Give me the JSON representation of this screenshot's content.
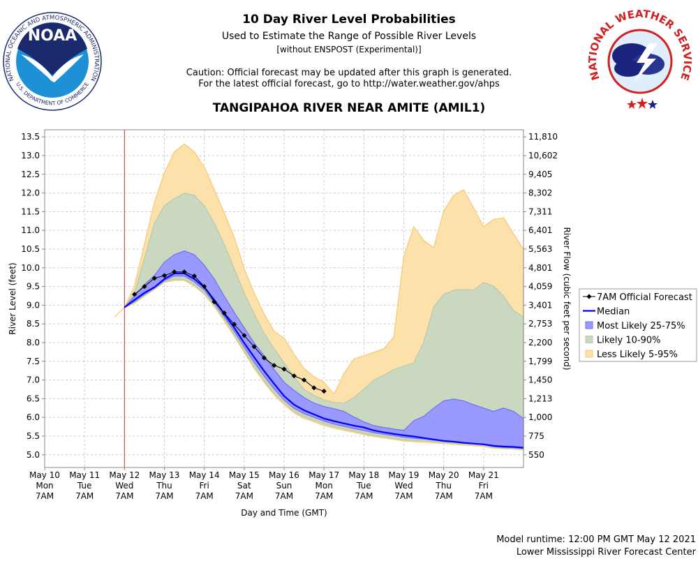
{
  "header": {
    "title": "10 Day River Level Probabilities",
    "subtitle": "Used to Estimate the Range of Possible River Levels",
    "note": "[without ENSPOST (Experimental)]",
    "caution": [
      "Caution: Official forecast may be updated after this graph is generated.",
      "For the latest official forecast, go to http://water.weather.gov/ahps"
    ]
  },
  "logos": {
    "noaa": {
      "name": "NOAA",
      "ring_top": "NATIONAL OCEANIC AND ATMOSPHERIC ADMINISTRATION",
      "ring_bottom": "U.S. DEPARTMENT OF COMMERCE"
    },
    "nws": {
      "ring": "NATIONAL WEATHER SERVICE"
    }
  },
  "chart_data": {
    "type": "probability_bands",
    "title": "TANGIPAHOA RIVER NEAR AMITE (AMIL1)",
    "x_label": "Day and Time (GMT)",
    "y_label": "River Level (feet)",
    "y2_label": "River Flow (cubic feet per second)",
    "grid": true,
    "legend": "right",
    "xlim": [
      "2021-05-10T07:00",
      "2021-05-22T07:00"
    ],
    "xticks": [
      {
        "value": "2021-05-10T07:00",
        "label": [
          "May 10",
          "Mon",
          "7AM"
        ]
      },
      {
        "value": "2021-05-11T07:00",
        "label": [
          "May 11",
          "Tue",
          "7AM"
        ]
      },
      {
        "value": "2021-05-12T07:00",
        "label": [
          "May 12",
          "Wed",
          "7AM"
        ]
      },
      {
        "value": "2021-05-13T07:00",
        "label": [
          "May 13",
          "Thu",
          "7AM"
        ]
      },
      {
        "value": "2021-05-14T07:00",
        "label": [
          "May 14",
          "Fri",
          "7AM"
        ]
      },
      {
        "value": "2021-05-15T07:00",
        "label": [
          "May 15",
          "Sat",
          "7AM"
        ]
      },
      {
        "value": "2021-05-16T07:00",
        "label": [
          "May 16",
          "Sun",
          "7AM"
        ]
      },
      {
        "value": "2021-05-17T07:00",
        "label": [
          "May 17",
          "Mon",
          "7AM"
        ]
      },
      {
        "value": "2021-05-18T07:00",
        "label": [
          "May 18",
          "Tue",
          "7AM"
        ]
      },
      {
        "value": "2021-05-19T07:00",
        "label": [
          "May 19",
          "Wed",
          "7AM"
        ]
      },
      {
        "value": "2021-05-20T07:00",
        "label": [
          "May 20",
          "Thu",
          "7AM"
        ]
      },
      {
        "value": "2021-05-21T07:00",
        "label": [
          "May 21",
          "Fri",
          "7AM"
        ]
      }
    ],
    "ylim": [
      4.66,
      13.69
    ],
    "yticks": [
      {
        "value": 5,
        "label": "5.0"
      },
      5.5,
      {
        "value": 6,
        "label": "6.0"
      },
      6.5,
      {
        "value": 7,
        "label": "7.0"
      },
      7.5,
      {
        "value": 8,
        "label": "8.0"
      },
      8.5,
      {
        "value": 9,
        "label": "9.0"
      },
      9.5,
      {
        "value": 10,
        "label": "10.0"
      },
      10.5,
      {
        "value": 11,
        "label": "11.0"
      },
      11.5,
      {
        "value": 12,
        "label": "12.0"
      },
      12.5,
      {
        "value": 13,
        "label": "13.0"
      },
      13.5
    ],
    "y2ticks": [
      550,
      775,
      {
        "value": 1000,
        "label": "1,000"
      },
      {
        "value": 1213,
        "label": "1,213"
      },
      {
        "value": 1450,
        "label": "1,450"
      },
      {
        "value": 1799,
        "label": "1,799"
      },
      {
        "value": 2200,
        "label": "2,200"
      },
      {
        "value": 2753,
        "label": "2,753"
      },
      {
        "value": 3401,
        "label": "3,401"
      },
      {
        "value": 4059,
        "label": "4,059"
      },
      {
        "value": 4801,
        "label": "4,801"
      },
      {
        "value": 5563,
        "label": "5,563"
      },
      {
        "value": 6401,
        "label": "6,401"
      },
      {
        "value": 7311,
        "label": "7,311"
      },
      {
        "value": 8302,
        "label": "8,302"
      },
      {
        "value": 9405,
        "label": "9,405"
      },
      {
        "value": 10602,
        "label": "10,602"
      },
      {
        "value": 11810,
        "label": "11,810"
      }
    ],
    "now_line": {
      "x": "2021-05-12T07:00",
      "color": "#cc3333"
    },
    "x": [
      "2021-05-12T01:00",
      "2021-05-12T07:00",
      "2021-05-12T13:00",
      "2021-05-12T19:00",
      "2021-05-13T01:00",
      "2021-05-13T07:00",
      "2021-05-13T13:00",
      "2021-05-13T19:00",
      "2021-05-14T01:00",
      "2021-05-14T07:00",
      "2021-05-14T13:00",
      "2021-05-14T19:00",
      "2021-05-15T01:00",
      "2021-05-15T07:00",
      "2021-05-15T13:00",
      "2021-05-15T19:00",
      "2021-05-16T01:00",
      "2021-05-16T07:00",
      "2021-05-16T13:00",
      "2021-05-16T19:00",
      "2021-05-17T01:00",
      "2021-05-17T07:00",
      "2021-05-17T13:00",
      "2021-05-17T19:00",
      "2021-05-18T01:00",
      "2021-05-18T07:00",
      "2021-05-18T13:00",
      "2021-05-18T19:00",
      "2021-05-19T01:00",
      "2021-05-19T07:00",
      "2021-05-19T13:00",
      "2021-05-19T19:00",
      "2021-05-20T01:00",
      "2021-05-20T07:00",
      "2021-05-20T13:00",
      "2021-05-20T19:00",
      "2021-05-21T01:00",
      "2021-05-21T07:00",
      "2021-05-21T13:00",
      "2021-05-21T19:00",
      "2021-05-22T01:00",
      "2021-05-22T07:00"
    ],
    "series": [
      {
        "name": "7AM Official Forecast",
        "color": "#000000",
        "marker": "diamond",
        "values": [
          null,
          null,
          9.29,
          9.5,
          9.72,
          9.79,
          9.89,
          9.89,
          9.78,
          9.5,
          9.09,
          8.79,
          8.49,
          8.19,
          7.89,
          7.59,
          7.39,
          7.29,
          7.11,
          7.0,
          6.79,
          6.7,
          null,
          null,
          null,
          null,
          null,
          null,
          null,
          null,
          null,
          null,
          null,
          null,
          null,
          null,
          null,
          null,
          null,
          null,
          null,
          null
        ]
      },
      {
        "name": "Median",
        "color": "#0000ff",
        "values": [
          null,
          8.94,
          9.14,
          9.33,
          9.48,
          9.7,
          9.85,
          9.85,
          9.7,
          9.48,
          9.14,
          8.77,
          8.4,
          7.99,
          7.61,
          7.24,
          6.9,
          6.57,
          6.34,
          6.19,
          6.08,
          5.97,
          5.9,
          5.84,
          5.78,
          5.73,
          5.65,
          5.6,
          5.56,
          5.52,
          5.49,
          5.45,
          5.41,
          5.37,
          5.35,
          5.32,
          5.3,
          5.28,
          5.24,
          5.22,
          5.21,
          5.19
        ]
      },
      {
        "name": "Most Likely 25-75%",
        "color": "#9999ff",
        "edge_color": "#7070ee",
        "lower": [
          null,
          8.94,
          9.1,
          9.29,
          9.46,
          9.66,
          9.78,
          9.78,
          9.62,
          9.4,
          9.06,
          8.69,
          8.3,
          7.88,
          7.47,
          7.1,
          6.76,
          6.46,
          6.24,
          6.1,
          6.0,
          5.9,
          5.82,
          5.76,
          5.7,
          5.65,
          5.59,
          5.55,
          5.51,
          5.47,
          5.44,
          5.42,
          5.39,
          5.36,
          5.34,
          5.31,
          5.29,
          5.27,
          5.22,
          5.2,
          5.19,
          5.17
        ],
        "upper": [
          null,
          8.94,
          9.24,
          9.55,
          9.79,
          10.15,
          10.35,
          10.45,
          10.35,
          10.07,
          9.7,
          9.24,
          8.81,
          8.4,
          7.99,
          7.65,
          7.28,
          6.94,
          6.72,
          6.53,
          6.38,
          6.29,
          6.23,
          6.16,
          6.01,
          5.88,
          5.78,
          5.73,
          5.69,
          5.65,
          5.91,
          6.03,
          6.25,
          6.44,
          6.49,
          6.44,
          6.34,
          6.25,
          6.16,
          6.25,
          6.16,
          5.97
        ]
      },
      {
        "name": "Likely 10-90%",
        "color": "#c9d8bf",
        "edge_color": "#b9c9ae",
        "lower": [
          null,
          8.94,
          9.07,
          9.26,
          9.44,
          9.63,
          9.69,
          9.69,
          9.54,
          9.32,
          8.99,
          8.62,
          8.21,
          7.78,
          7.35,
          6.98,
          6.64,
          6.38,
          6.16,
          6.01,
          5.92,
          5.82,
          5.75,
          5.69,
          5.63,
          5.57,
          5.52,
          5.48,
          5.44,
          5.4,
          5.38,
          5.37,
          5.35,
          5.33,
          5.31,
          5.29,
          5.27,
          5.25,
          5.2,
          5.18,
          5.17,
          5.15
        ],
        "upper": [
          null,
          8.94,
          9.33,
          10.26,
          11.19,
          11.66,
          11.85,
          12.0,
          11.94,
          11.66,
          11.19,
          10.63,
          9.98,
          9.33,
          8.77,
          8.25,
          7.84,
          7.46,
          7.09,
          6.75,
          6.59,
          6.47,
          6.4,
          6.38,
          6.53,
          6.75,
          7.0,
          7.13,
          7.28,
          7.37,
          7.46,
          8.02,
          8.96,
          9.29,
          9.4,
          9.42,
          9.4,
          9.61,
          9.51,
          9.24,
          8.86,
          8.68
        ]
      },
      {
        "name": "Less Likely 5-95%",
        "color": "#fde1aa",
        "edge_color": "#f8c870",
        "lower": [
          8.68,
          8.94,
          9.05,
          9.24,
          9.42,
          9.61,
          9.66,
          9.66,
          9.51,
          9.29,
          8.96,
          8.58,
          8.17,
          7.74,
          7.31,
          6.94,
          6.6,
          6.34,
          6.12,
          5.97,
          5.88,
          5.78,
          5.71,
          5.65,
          5.6,
          5.54,
          5.49,
          5.45,
          5.41,
          5.37,
          5.35,
          5.34,
          5.32,
          5.3,
          5.28,
          5.26,
          5.24,
          5.22,
          5.18,
          5.16,
          5.15,
          5.13
        ],
        "upper": [
          8.68,
          8.94,
          9.51,
          10.63,
          11.75,
          12.54,
          13.1,
          13.31,
          13.1,
          12.69,
          12.09,
          11.47,
          10.82,
          9.98,
          9.33,
          8.77,
          8.3,
          8.12,
          7.69,
          7.31,
          7.09,
          6.94,
          6.62,
          7.18,
          7.56,
          7.65,
          7.74,
          7.84,
          8.15,
          10.3,
          11.1,
          10.73,
          10.54,
          11.51,
          11.94,
          12.09,
          11.6,
          11.1,
          11.29,
          11.34,
          10.91,
          10.49
        ]
      }
    ]
  },
  "footer": [
    "Model runtime: 12:00 PM GMT May 12 2021",
    "Lower Mississippi River Forecast Center"
  ]
}
